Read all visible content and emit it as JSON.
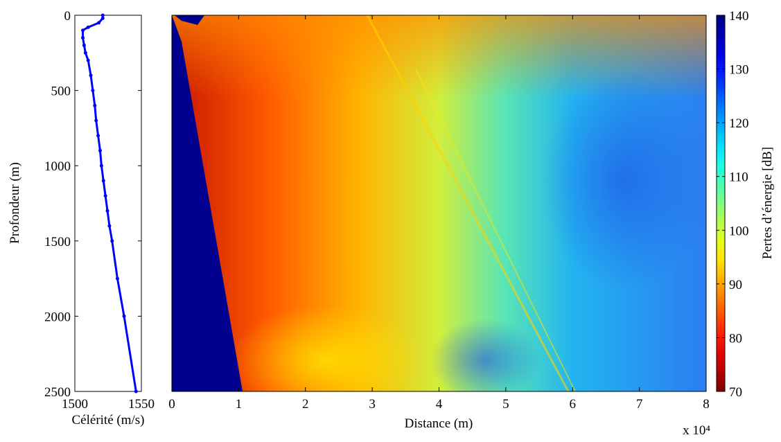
{
  "chart_data": [
    {
      "type": "line",
      "xlabel": "Célérité (m/s)",
      "ylabel": "Profondeur (m)",
      "x": [
        1521,
        1521,
        1518,
        1510,
        1506,
        1506,
        1507,
        1508,
        1510,
        1512,
        1513.5,
        1515,
        1516,
        1517.5,
        1519,
        1520,
        1521.5,
        1523,
        1524.5,
        1526,
        1528,
        1532,
        1537,
        1546
      ],
      "values": [
        0,
        20,
        50,
        80,
        100,
        150,
        200,
        250,
        300,
        400,
        500,
        600,
        700,
        800,
        900,
        1000,
        1100,
        1200,
        1300,
        1400,
        1500,
        1750,
        2000,
        2500
      ],
      "color": "#0000ff",
      "xlim": [
        1500,
        1550
      ],
      "xticks": [
        1500,
        1550
      ],
      "ylim": [
        0,
        2500
      ],
      "yticks": [
        0,
        500,
        1000,
        1500,
        2000,
        2500
      ],
      "y_reversed": true
    },
    {
      "type": "heatmap",
      "xlabel": "Distance (m)",
      "x_scale_label": "x 10⁴",
      "xlim": [
        0,
        80000
      ],
      "xticks": [
        {
          "value": 0,
          "label": "0"
        },
        {
          "value": 10000,
          "label": "1"
        },
        {
          "value": 20000,
          "label": "2"
        },
        {
          "value": 30000,
          "label": "3"
        },
        {
          "value": 40000,
          "label": "4"
        },
        {
          "value": 50000,
          "label": "5"
        },
        {
          "value": 60000,
          "label": "6"
        },
        {
          "value": 70000,
          "label": "7"
        },
        {
          "value": 80000,
          "label": "8"
        }
      ],
      "ylim": [
        0,
        2500
      ],
      "y_reversed": true,
      "colorbar": {
        "label": "Pertes d’énergie [dB]",
        "lim": [
          70,
          140
        ],
        "ticks": [
          70,
          80,
          90,
          100,
          110,
          120,
          130,
          140
        ],
        "colormap": "jet",
        "reversed": true
      }
    }
  ]
}
